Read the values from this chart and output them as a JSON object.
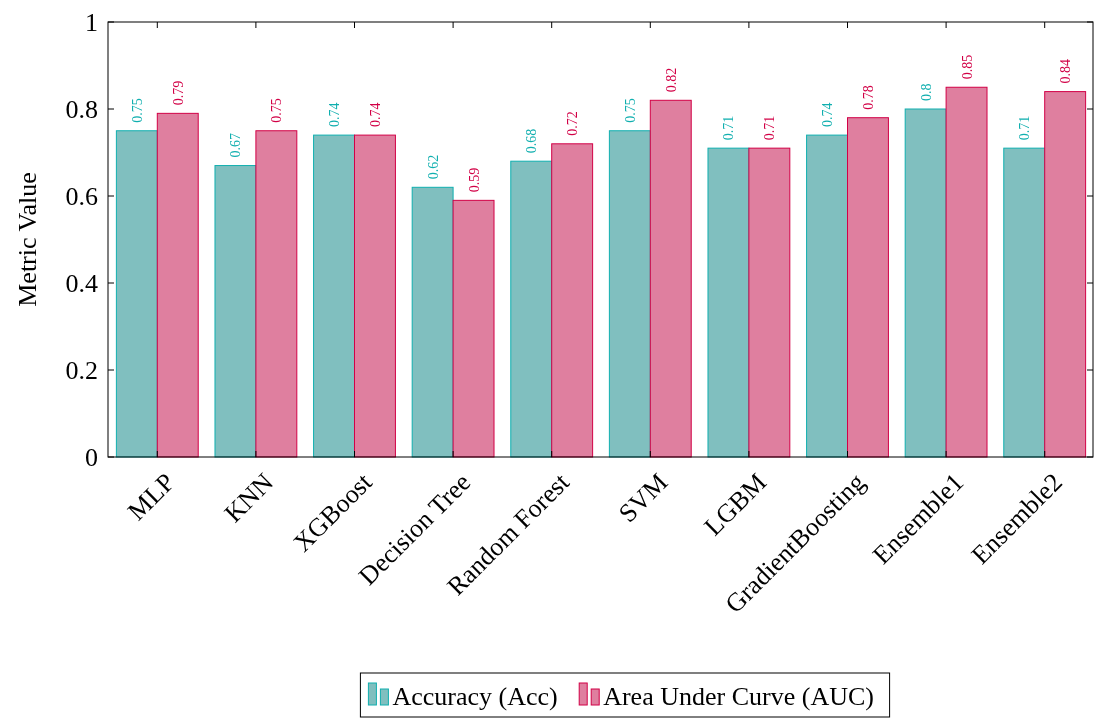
{
  "chart_data": {
    "type": "bar",
    "ylabel": "Metric Value",
    "categories": [
      "MLP",
      "KNN",
      "XGBoost",
      "Decision Tree",
      "Random Forest",
      "SVM",
      "LGBM",
      "GradientBoosting",
      "Ensemble1",
      "Ensemble2"
    ],
    "series": [
      {
        "name": "Accuracy (Acc)",
        "color": "#80bfbf",
        "values": [
          0.75,
          0.67,
          0.74,
          0.62,
          0.68,
          0.75,
          0.71,
          0.74,
          0.8,
          0.71
        ]
      },
      {
        "name": "Area Under Curve (AUC)",
        "color": "#df7f9f",
        "values": [
          0.79,
          0.75,
          0.74,
          0.59,
          0.72,
          0.82,
          0.71,
          0.78,
          0.85,
          0.84
        ]
      }
    ],
    "ylim": [
      0,
      1
    ],
    "yticks": [
      0,
      0.2,
      0.4,
      0.6,
      0.8,
      1
    ],
    "data_labels": true,
    "legend": "bottom",
    "grid": false
  }
}
